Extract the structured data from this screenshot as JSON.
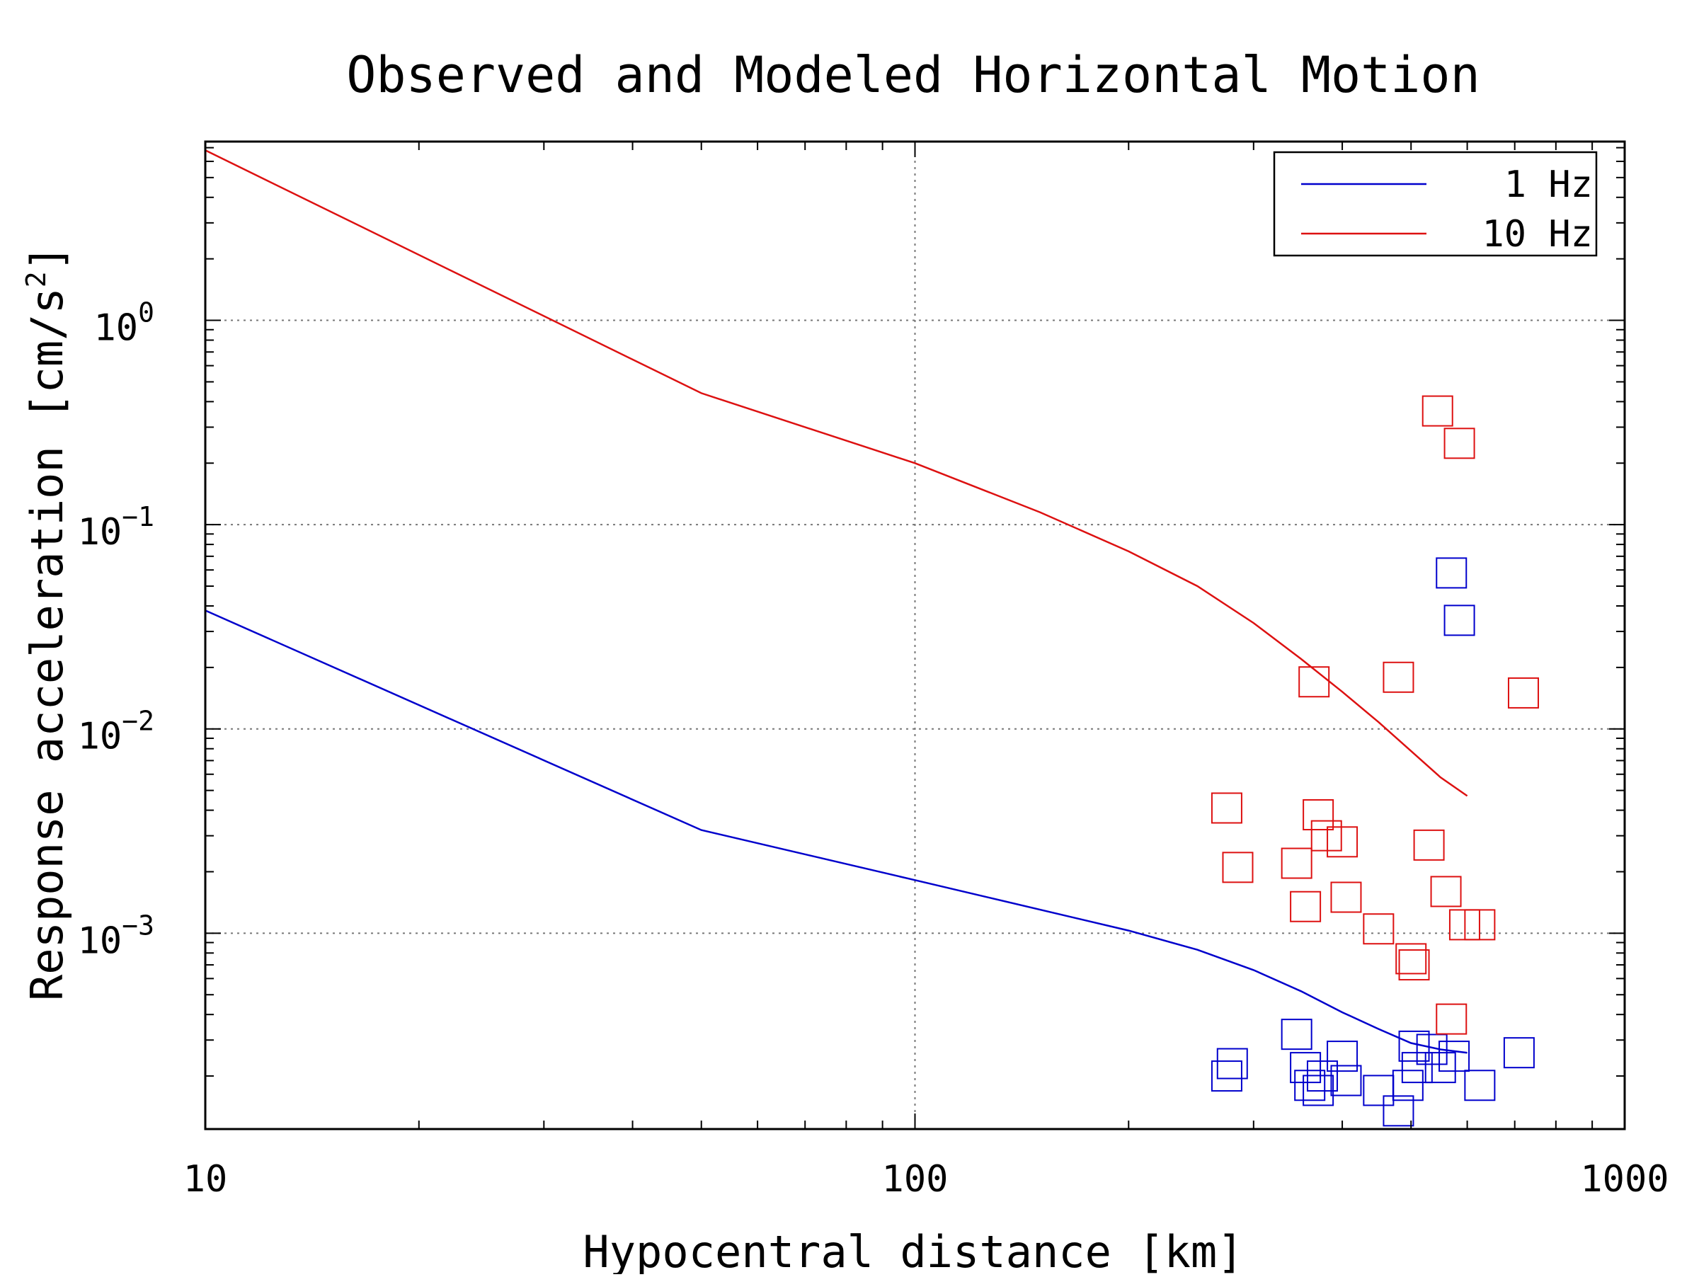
{
  "chart_data": {
    "type": "scatter",
    "title": "Observed and Modeled Horizontal Motion",
    "xlabel": "Hypocentral distance [km]",
    "ylabel": "Response acceleration [cm/s",
    "ylabel_sup": "2",
    "ylabel_suffix": "]",
    "xscale": "log",
    "yscale": "log",
    "xlim": [
      10,
      1000
    ],
    "ylim": [
      0.00011,
      7.5
    ],
    "grid": true,
    "legend_position": "top-right",
    "x_ticks": [
      {
        "value": 10,
        "label": "10"
      },
      {
        "value": 100,
        "label": "100"
      },
      {
        "value": 1000,
        "label": "1000"
      }
    ],
    "y_ticks": [
      {
        "value": 1,
        "base": "10",
        "exp": "0"
      },
      {
        "value": 0.1,
        "base": "10",
        "exp": "−1"
      },
      {
        "value": 0.01,
        "base": "10",
        "exp": "−2"
      },
      {
        "value": 0.001,
        "base": "10",
        "exp": "−3"
      }
    ],
    "series": [
      {
        "name": "1 Hz",
        "color": "#0000cc",
        "line": {
          "x": [
            10,
            50,
            100,
            200,
            250,
            300,
            350,
            400,
            450,
            500,
            550,
            600
          ],
          "y": [
            0.038,
            0.0032,
            0.00182,
            0.00103,
            0.00083,
            0.00066,
            0.00052,
            0.00041,
            0.00034,
            0.00029,
            0.00027,
            0.00026
          ]
        },
        "points": {
          "x": [
            275,
            280,
            345,
            355,
            360,
            370,
            375,
            400,
            405,
            450,
            480,
            495,
            505,
            510,
            535,
            550,
            570,
            575,
            585,
            625,
            710
          ],
          "y": [
            0.0002,
            0.00023,
            0.00032,
            0.00022,
            0.00018,
            0.00017,
            0.0002,
            0.00025,
            0.00019,
            0.00017,
            0.000135,
            0.00018,
            0.00028,
            0.00022,
            0.00027,
            0.00022,
            0.058,
            0.00025,
            0.034,
            0.00018,
            0.00026
          ]
        }
      },
      {
        "name": "10 Hz",
        "color": "#dd1111",
        "line": {
          "x": [
            10,
            50,
            100,
            150,
            200,
            250,
            300,
            350,
            400,
            450,
            500,
            550,
            600
          ],
          "y": [
            6.8,
            0.44,
            0.2,
            0.115,
            0.074,
            0.05,
            0.033,
            0.022,
            0.0152,
            0.0108,
            0.0078,
            0.0058,
            0.0047
          ]
        },
        "points": {
          "x": [
            275,
            285,
            345,
            355,
            365,
            370,
            380,
            400,
            405,
            450,
            480,
            500,
            505,
            530,
            545,
            560,
            570,
            585,
            595,
            625,
            720
          ],
          "y": [
            0.0041,
            0.0021,
            0.0022,
            0.00135,
            0.017,
            0.0038,
            0.003,
            0.0028,
            0.0015,
            0.00105,
            0.0179,
            0.00075,
            0.0007,
            0.0027,
            0.36,
            0.0016,
            0.00038,
            0.25,
            0.0011,
            0.0011,
            0.015
          ]
        }
      }
    ]
  }
}
